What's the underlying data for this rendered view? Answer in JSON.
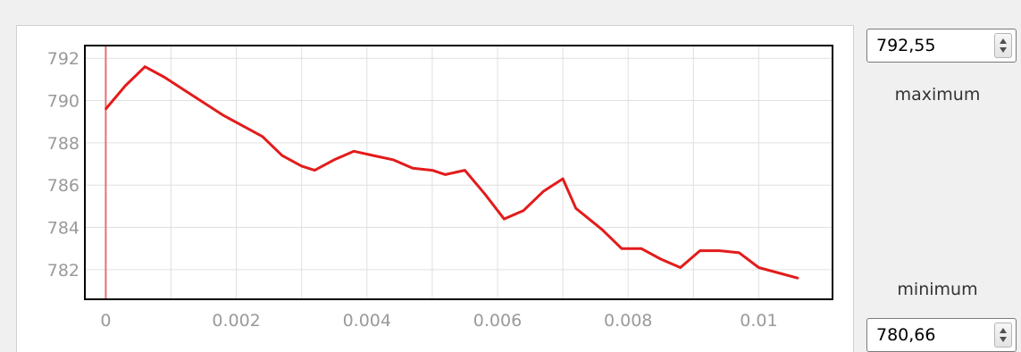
{
  "range_controls": {
    "maximum": {
      "value": "792,55",
      "label": "maximum"
    },
    "minimum": {
      "value": "780,66",
      "label": "minimum"
    }
  },
  "colors": {
    "series": "#e31b1b",
    "cursor": "#e87070",
    "grid": "#e0e0e0",
    "tick_text": "#9a9a9a",
    "frame": "#000000"
  },
  "icons": [
    "spin-up-icon",
    "spin-down-icon"
  ],
  "chart_data": {
    "type": "line",
    "title": "",
    "xlabel": "",
    "ylabel": "",
    "xlim": [
      -0.00032,
      0.01113
    ],
    "ylim": [
      780.6,
      792.6
    ],
    "grid": true,
    "legend": "none",
    "x_ticks": [
      0,
      0.001,
      0.002,
      0.003,
      0.004,
      0.005,
      0.006,
      0.007,
      0.008,
      0.009,
      0.01
    ],
    "x_tick_labels": [
      "0",
      "",
      "0.002",
      "",
      "0.004",
      "",
      "0.006",
      "",
      "0.008",
      "",
      "0.01"
    ],
    "y_ticks": [
      782,
      784,
      786,
      788,
      790,
      792
    ],
    "y_tick_labels": [
      "782",
      "784",
      "786",
      "788",
      "790",
      "792"
    ],
    "cursor_x": 0,
    "series": [
      {
        "x": [
          0,
          0.0003,
          0.0006,
          0.0009,
          0.0012,
          0.0015,
          0.0018,
          0.0021,
          0.0024,
          0.0027,
          0.003,
          0.0032,
          0.0035,
          0.0038,
          0.0041,
          0.0044,
          0.0047,
          0.005,
          0.0052,
          0.0055,
          0.0058,
          0.0061,
          0.0064,
          0.0067,
          0.007,
          0.0072,
          0.0076,
          0.0079,
          0.0082,
          0.0085,
          0.0088,
          0.0091,
          0.0094,
          0.0097,
          0.01,
          0.0106
        ],
        "values": [
          789.6,
          790.7,
          791.6,
          791.1,
          790.5,
          789.9,
          789.3,
          788.8,
          788.3,
          787.4,
          786.9,
          786.7,
          787.2,
          787.6,
          787.4,
          787.2,
          786.8,
          786.7,
          786.5,
          786.7,
          785.6,
          784.4,
          784.8,
          785.7,
          786.3,
          784.9,
          783.9,
          783.0,
          783.0,
          782.5,
          782.1,
          782.9,
          782.9,
          782.8,
          782.1,
          781.6
        ]
      }
    ]
  }
}
